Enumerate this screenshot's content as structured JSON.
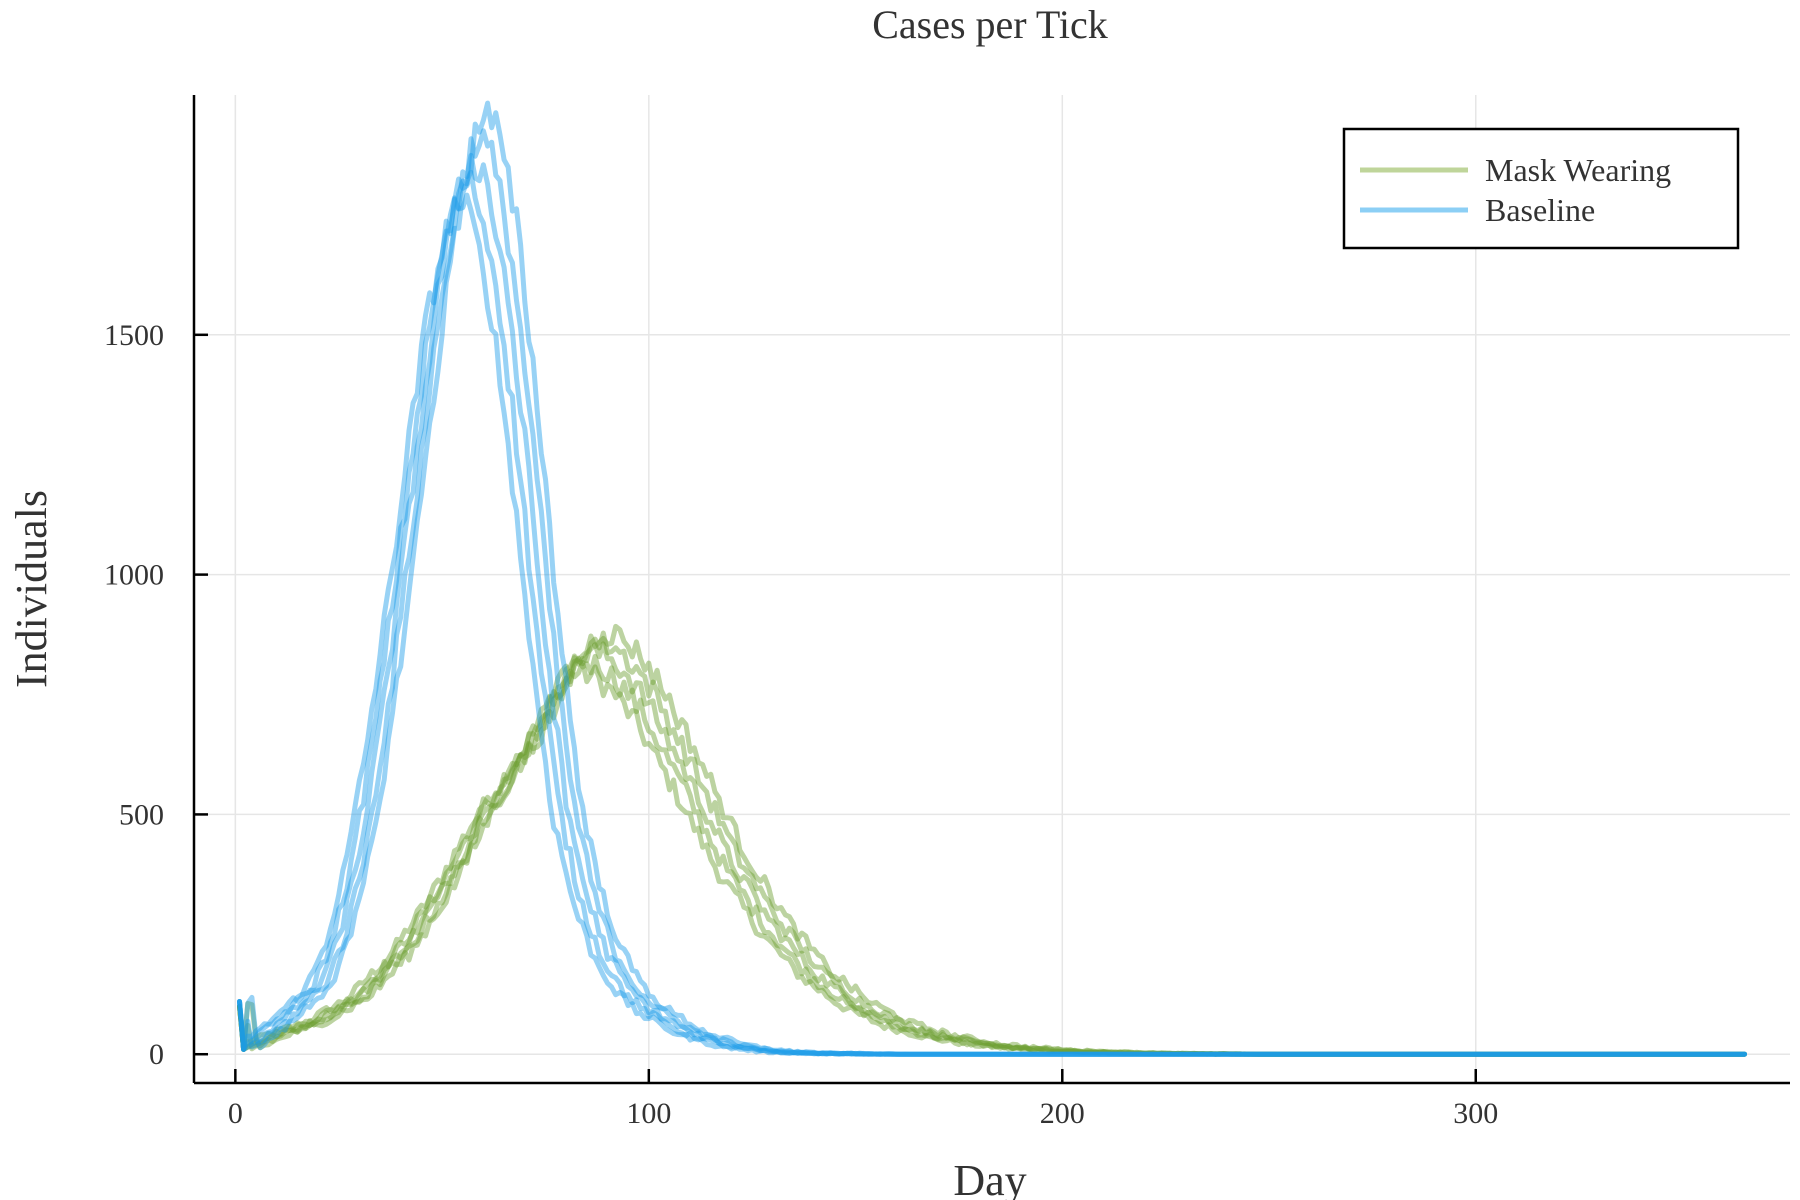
{
  "chart_data": {
    "type": "line",
    "title": "Cases per Tick",
    "xlabel": "Day",
    "ylabel": "Individuals",
    "xlim": [
      -10,
      376
    ],
    "ylim": [
      -60,
      2000
    ],
    "xticks": [
      0,
      100,
      200,
      300
    ],
    "yticks": [
      0,
      500,
      1000,
      1500
    ],
    "grid": true,
    "legend_position": "top-right",
    "series": [
      {
        "name": "Mask Wearing",
        "color": "#6b9e2f",
        "legend_color": "#bfd59a",
        "runs": 5,
        "x": [
          1,
          2,
          10,
          20,
          30,
          40,
          50,
          60,
          70,
          75,
          80,
          85,
          90,
          95,
          100,
          110,
          120,
          130,
          140,
          150,
          160,
          170,
          180,
          190,
          200,
          210,
          220,
          230,
          250,
          300,
          365
        ],
        "y": [
          100,
          10,
          40,
          70,
          120,
          210,
          340,
          500,
          630,
          700,
          790,
          840,
          830,
          790,
          730,
          570,
          400,
          270,
          170,
          105,
          62,
          38,
          22,
          13,
          7,
          4,
          2,
          1,
          0,
          0,
          0
        ]
      },
      {
        "name": "Baseline",
        "color": "#1a9ce8",
        "legend_color": "#8ccff5",
        "runs": 5,
        "x": [
          1,
          2,
          10,
          20,
          25,
          30,
          35,
          40,
          45,
          50,
          55,
          57,
          60,
          65,
          70,
          75,
          80,
          85,
          90,
          95,
          100,
          110,
          120,
          130,
          140,
          150,
          160,
          180,
          200,
          250,
          365
        ],
        "y": [
          110,
          10,
          60,
          140,
          240,
          420,
          680,
          990,
          1330,
          1640,
          1830,
          1870,
          1840,
          1640,
          1280,
          860,
          520,
          330,
          210,
          140,
          95,
          45,
          18,
          6,
          2,
          1,
          0,
          0,
          0,
          0,
          0
        ]
      }
    ]
  }
}
